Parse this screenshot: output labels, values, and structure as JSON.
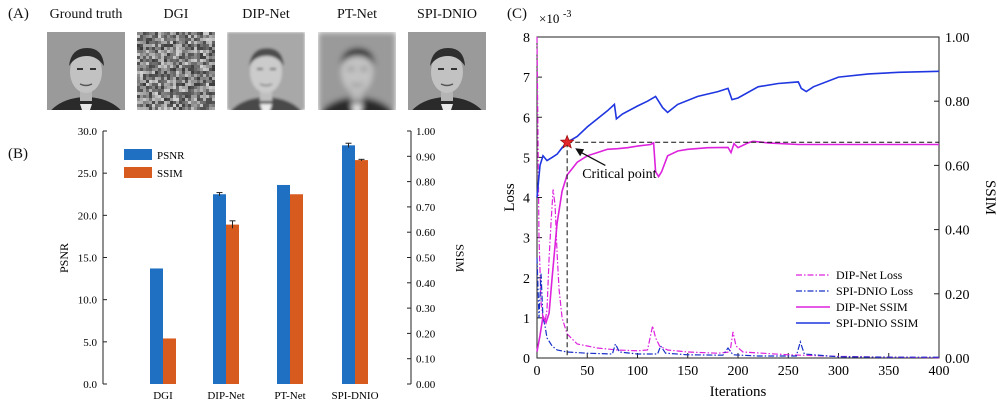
{
  "panel_a": {
    "label": "(A)",
    "images": [
      {
        "title": "Ground truth",
        "kind": "clear"
      },
      {
        "title": "DGI",
        "kind": "noise"
      },
      {
        "title": "DIP-Net",
        "kind": "mid"
      },
      {
        "title": "PT-Net",
        "kind": "blur"
      },
      {
        "title": "SPI-DNIO",
        "kind": "clear"
      }
    ]
  },
  "panel_b": {
    "label": "(B)"
  },
  "panel_c": {
    "label": "(C)"
  },
  "chart_data": [
    {
      "type": "bar",
      "categories": [
        "DGI",
        "DIP-Net",
        "PT-Net",
        "SPI-DNIO"
      ],
      "series": [
        {
          "name": "PSNR",
          "axis": "left",
          "color": "#1f6fc2",
          "values": [
            13.7,
            22.5,
            23.6,
            28.3
          ],
          "error": [
            0,
            0.2,
            0,
            0.25
          ]
        },
        {
          "name": "SSIM",
          "axis": "right",
          "color": "#d75a1e",
          "values": [
            0.18,
            0.63,
            0.75,
            0.885
          ],
          "error": [
            0,
            0.015,
            0,
            0.003
          ]
        }
      ],
      "ylabel": "PSNR",
      "y2label": "SSIM",
      "ylim": [
        0,
        30
      ],
      "y2lim": [
        0,
        1.0
      ],
      "yticks": [
        "0.0",
        "5.0",
        "10.0",
        "15.0",
        "20.0",
        "25.0",
        "30.0"
      ],
      "y2ticks": [
        "0.00",
        "0.10",
        "0.20",
        "0.30",
        "0.40",
        "0.50",
        "0.60",
        "0.70",
        "0.80",
        "0.90",
        "1.00"
      ],
      "legend": "top-left"
    },
    {
      "type": "line",
      "xlabel": "Iterations",
      "ylabel": "Loss",
      "y2label": "SSIM",
      "exponent_label": "×10",
      "exponent_power": "-3",
      "xlim": [
        0,
        400
      ],
      "ylim": [
        0,
        8
      ],
      "y2lim": [
        0,
        1.0
      ],
      "xticks": [
        "0",
        "50",
        "100",
        "150",
        "200",
        "250",
        "300",
        "350",
        "400"
      ],
      "yticks": [
        "0",
        "1",
        "2",
        "3",
        "4",
        "5",
        "6",
        "7",
        "8"
      ],
      "y2ticks": [
        "0.00",
        "0.20",
        "0.40",
        "0.60",
        "0.80",
        "1.00"
      ],
      "annotation": {
        "text": "Critical point",
        "x": 30,
        "y2": 0.672
      },
      "legend": "bottom-right",
      "series": [
        {
          "name": "DIP-Net Loss",
          "axis": "left",
          "color": "#dd22dd",
          "style": "dashdot",
          "points": [
            [
              0,
              8.0
            ],
            [
              2,
              3.0
            ],
            [
              4,
              1.4
            ],
            [
              6,
              1.0
            ],
            [
              8,
              0.9
            ],
            [
              10,
              1.2
            ],
            [
              12,
              2.5
            ],
            [
              14,
              3.4
            ],
            [
              16,
              4.2
            ],
            [
              18,
              3.8
            ],
            [
              20,
              2.6
            ],
            [
              22,
              1.7
            ],
            [
              25,
              1.0
            ],
            [
              30,
              0.6
            ],
            [
              40,
              0.35
            ],
            [
              60,
              0.25
            ],
            [
              80,
              0.2
            ],
            [
              100,
              0.18
            ],
            [
              110,
              0.2
            ],
            [
              115,
              0.8
            ],
            [
              118,
              0.5
            ],
            [
              122,
              0.3
            ],
            [
              130,
              0.2
            ],
            [
              150,
              0.15
            ],
            [
              180,
              0.12
            ],
            [
              192,
              0.15
            ],
            [
              195,
              0.65
            ],
            [
              198,
              0.3
            ],
            [
              205,
              0.15
            ],
            [
              250,
              0.08
            ],
            [
              300,
              0.04
            ],
            [
              350,
              0.02
            ],
            [
              400,
              0.01
            ]
          ]
        },
        {
          "name": "SPI-DNIO Loss",
          "axis": "left",
          "color": "#1830c8",
          "style": "dashdot",
          "points": [
            [
              0,
              2.5
            ],
            [
              2,
              1.0
            ],
            [
              4,
              2.1
            ],
            [
              6,
              1.0
            ],
            [
              8,
              0.8
            ],
            [
              10,
              0.5
            ],
            [
              15,
              0.3
            ],
            [
              20,
              0.2
            ],
            [
              30,
              0.15
            ],
            [
              50,
              0.12
            ],
            [
              75,
              0.1
            ],
            [
              78,
              0.35
            ],
            [
              82,
              0.15
            ],
            [
              100,
              0.1
            ],
            [
              120,
              0.1
            ],
            [
              123,
              0.3
            ],
            [
              128,
              0.12
            ],
            [
              150,
              0.08
            ],
            [
              185,
              0.07
            ],
            [
              190,
              0.25
            ],
            [
              195,
              0.08
            ],
            [
              220,
              0.05
            ],
            [
              258,
              0.05
            ],
            [
              262,
              0.4
            ],
            [
              266,
              0.1
            ],
            [
              300,
              0.03
            ],
            [
              350,
              0.02
            ],
            [
              400,
              0.02
            ]
          ]
        },
        {
          "name": "DIP-Net SSIM",
          "axis": "right",
          "color": "#dd22dd",
          "style": "solid",
          "points": [
            [
              0,
              0.02
            ],
            [
              3,
              0.07
            ],
            [
              6,
              0.13
            ],
            [
              9,
              0.11
            ],
            [
              12,
              0.14
            ],
            [
              15,
              0.25
            ],
            [
              20,
              0.42
            ],
            [
              25,
              0.52
            ],
            [
              30,
              0.57
            ],
            [
              35,
              0.59
            ],
            [
              40,
              0.61
            ],
            [
              50,
              0.63
            ],
            [
              60,
              0.64
            ],
            [
              70,
              0.65
            ],
            [
              80,
              0.652
            ],
            [
              90,
              0.655
            ],
            [
              100,
              0.66
            ],
            [
              113,
              0.665
            ],
            [
              116,
              0.67
            ],
            [
              118,
              0.58
            ],
            [
              121,
              0.565
            ],
            [
              124,
              0.58
            ],
            [
              130,
              0.63
            ],
            [
              140,
              0.645
            ],
            [
              150,
              0.65
            ],
            [
              170,
              0.655
            ],
            [
              190,
              0.656
            ],
            [
              193,
              0.64
            ],
            [
              196,
              0.668
            ],
            [
              200,
              0.655
            ],
            [
              210,
              0.67
            ],
            [
              215,
              0.675
            ],
            [
              230,
              0.67
            ],
            [
              260,
              0.665
            ],
            [
              300,
              0.665
            ],
            [
              350,
              0.665
            ],
            [
              400,
              0.665
            ]
          ]
        },
        {
          "name": "SPI-DNIO SSIM",
          "axis": "right",
          "color": "#1f36e0",
          "style": "solid",
          "points": [
            [
              0,
              0.5
            ],
            [
              3,
              0.6
            ],
            [
              6,
              0.63
            ],
            [
              10,
              0.615
            ],
            [
              15,
              0.625
            ],
            [
              20,
              0.635
            ],
            [
              25,
              0.655
            ],
            [
              30,
              0.672
            ],
            [
              40,
              0.69
            ],
            [
              50,
              0.72
            ],
            [
              60,
              0.745
            ],
            [
              70,
              0.77
            ],
            [
              77,
              0.79
            ],
            [
              79,
              0.745
            ],
            [
              85,
              0.76
            ],
            [
              100,
              0.785
            ],
            [
              110,
              0.8
            ],
            [
              118,
              0.815
            ],
            [
              125,
              0.78
            ],
            [
              130,
              0.765
            ],
            [
              140,
              0.79
            ],
            [
              160,
              0.815
            ],
            [
              180,
              0.83
            ],
            [
              190,
              0.84
            ],
            [
              194,
              0.805
            ],
            [
              200,
              0.81
            ],
            [
              220,
              0.845
            ],
            [
              240,
              0.855
            ],
            [
              260,
              0.86
            ],
            [
              263,
              0.84
            ],
            [
              268,
              0.83
            ],
            [
              275,
              0.845
            ],
            [
              300,
              0.875
            ],
            [
              330,
              0.885
            ],
            [
              360,
              0.89
            ],
            [
              400,
              0.893
            ]
          ]
        }
      ]
    }
  ]
}
